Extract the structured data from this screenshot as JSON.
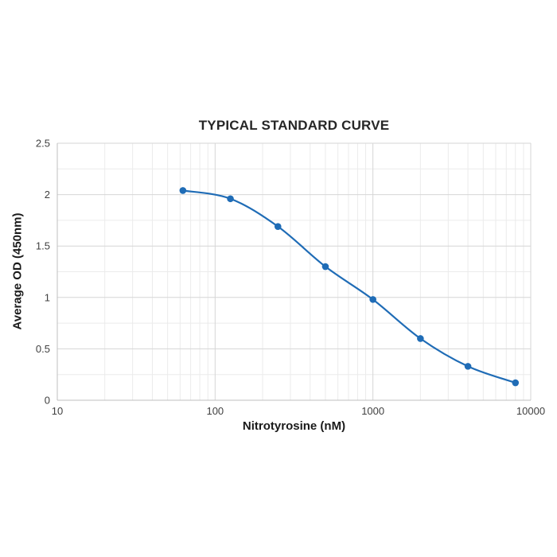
{
  "chart_data": {
    "type": "line",
    "title": "TYPICAL STANDARD CURVE",
    "xlabel": "Nitrotyrosine (nM)",
    "ylabel": "Average OD (450nm)",
    "x_scale": "log",
    "xlim": [
      10,
      10000
    ],
    "ylim": [
      0,
      2.5
    ],
    "x_ticks": [
      10,
      100,
      1000,
      10000
    ],
    "x_tick_labels": [
      "10",
      "100",
      "1000",
      "10000"
    ],
    "y_ticks": [
      0,
      0.5,
      1,
      1.5,
      2,
      2.5
    ],
    "y_tick_labels": [
      "0",
      "0.5",
      "1",
      "1.5",
      "2",
      "2.5"
    ],
    "grid": true,
    "legend": "none",
    "series": [
      {
        "name": "Typical standard curve",
        "x": [
          62.5,
          125,
          250,
          500,
          1000,
          2000,
          4000,
          8000
        ],
        "y": [
          2.04,
          1.96,
          1.69,
          1.3,
          0.98,
          0.6,
          0.33,
          0.17
        ]
      }
    ]
  },
  "colors": {
    "line": "#1f6cb6",
    "marker": "#1f6cb6",
    "major_grid": "#d6d6d6",
    "minor_grid": "#ebebeb",
    "axis_line": "#bfbfbf",
    "background": "#ffffff"
  }
}
